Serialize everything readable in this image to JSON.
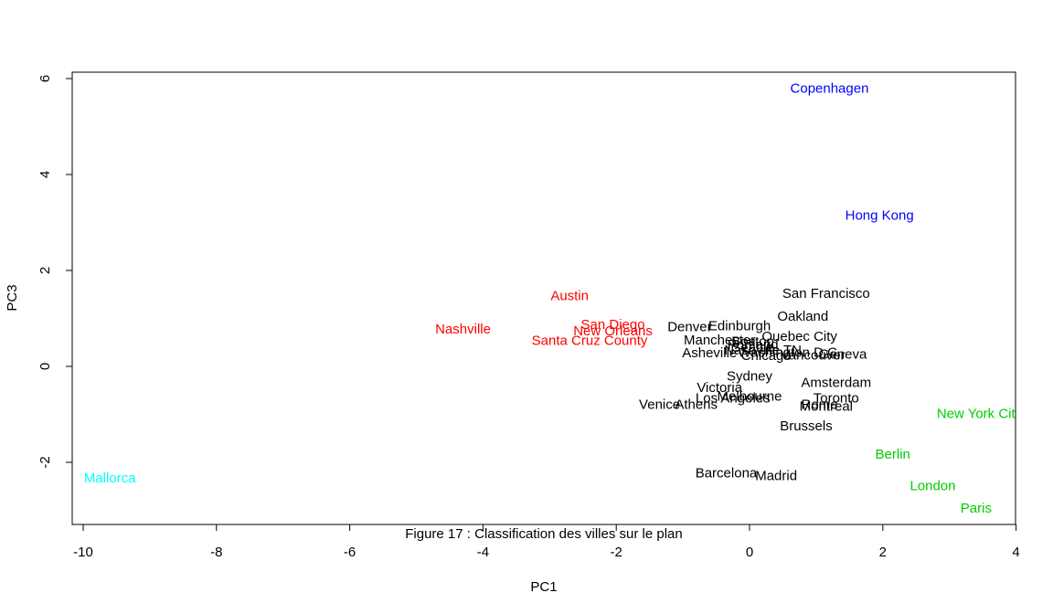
{
  "chart_data": {
    "type": "scatter",
    "xlabel": "PC1",
    "ylabel": "PC3",
    "caption": "Figure 17 : Classification des villes sur le plan",
    "xlim": [
      -10.2,
      4.0
    ],
    "ylim": [
      -3.25,
      6.1
    ],
    "xticks": [
      -10,
      -8,
      -6,
      -4,
      -2,
      0,
      2,
      4
    ],
    "yticks": [
      -2,
      0,
      2,
      4,
      6
    ],
    "colors": {
      "black": "#000000",
      "red": "#ff0000",
      "blue": "#0000ff",
      "green": "#00cd00",
      "cyan": "#00ffff"
    },
    "points": [
      {
        "label": "Copenhagen",
        "x": 1.2,
        "y": 5.8,
        "color": "blue"
      },
      {
        "label": "Hong Kong",
        "x": 1.95,
        "y": 3.15,
        "color": "blue"
      },
      {
        "label": "Austin",
        "x": -2.7,
        "y": 1.48,
        "color": "red"
      },
      {
        "label": "Nashville",
        "x": -4.3,
        "y": 0.78,
        "color": "red"
      },
      {
        "label": "San Diego",
        "x": -2.05,
        "y": 0.88,
        "color": "red"
      },
      {
        "label": "New Orleans",
        "x": -2.05,
        "y": 0.74,
        "color": "red"
      },
      {
        "label": "Santa Cruz County",
        "x": -2.4,
        "y": 0.54,
        "color": "red"
      },
      {
        "label": "Mallorca",
        "x": -9.6,
        "y": -2.32,
        "color": "cyan"
      },
      {
        "label": "New York City",
        "x": 3.45,
        "y": -0.98,
        "color": "green"
      },
      {
        "label": "Berlin",
        "x": 2.15,
        "y": -1.83,
        "color": "green"
      },
      {
        "label": "London",
        "x": 2.75,
        "y": -2.49,
        "color": "green"
      },
      {
        "label": "Paris",
        "x": 3.4,
        "y": -2.95,
        "color": "green"
      },
      {
        "label": "San Francisco",
        "x": 1.15,
        "y": 1.52,
        "color": "black"
      },
      {
        "label": "Oakland",
        "x": 0.8,
        "y": 1.05,
        "color": "black"
      },
      {
        "label": "Denver",
        "x": -0.9,
        "y": 0.83,
        "color": "black"
      },
      {
        "label": "Edinburgh",
        "x": -0.15,
        "y": 0.85,
        "color": "black"
      },
      {
        "label": "Quebec City",
        "x": 0.75,
        "y": 0.63,
        "color": "black"
      },
      {
        "label": "Manchester",
        "x": -0.45,
        "y": 0.55,
        "color": "black"
      },
      {
        "label": "Boston",
        "x": 0.05,
        "y": 0.52,
        "color": "black"
      },
      {
        "label": "Portland",
        "x": 0.05,
        "y": 0.46,
        "color": "black"
      },
      {
        "label": "Seattle",
        "x": 0.05,
        "y": 0.4,
        "color": "black"
      },
      {
        "label": "Nashville TN",
        "x": 0.2,
        "y": 0.34,
        "color": "black"
      },
      {
        "label": "Washington D.C.",
        "x": 0.6,
        "y": 0.3,
        "color": "black"
      },
      {
        "label": "Asheville",
        "x": -0.6,
        "y": 0.29,
        "color": "black"
      },
      {
        "label": "Chicago",
        "x": 0.25,
        "y": 0.23,
        "color": "black"
      },
      {
        "label": "Vancouver",
        "x": 0.95,
        "y": 0.24,
        "color": "black"
      },
      {
        "label": "Geneva",
        "x": 1.4,
        "y": 0.26,
        "color": "black"
      },
      {
        "label": "Sydney",
        "x": 0.0,
        "y": -0.2,
        "color": "black"
      },
      {
        "label": "Amsterdam",
        "x": 1.3,
        "y": -0.33,
        "color": "black"
      },
      {
        "label": "Victoria",
        "x": -0.45,
        "y": -0.44,
        "color": "black"
      },
      {
        "label": "Melbourne",
        "x": 0.0,
        "y": -0.62,
        "color": "black"
      },
      {
        "label": "Los Angeles",
        "x": -0.25,
        "y": -0.66,
        "color": "black"
      },
      {
        "label": "Toronto",
        "x": 1.3,
        "y": -0.66,
        "color": "black"
      },
      {
        "label": "Rome",
        "x": 1.05,
        "y": -0.79,
        "color": "black"
      },
      {
        "label": "Montreal",
        "x": 1.15,
        "y": -0.83,
        "color": "black"
      },
      {
        "label": "Venice",
        "x": -1.35,
        "y": -0.79,
        "color": "black"
      },
      {
        "label": "Athens",
        "x": -0.8,
        "y": -0.79,
        "color": "black"
      },
      {
        "label": "Brussels",
        "x": 0.85,
        "y": -1.24,
        "color": "black"
      },
      {
        "label": "Barcelona",
        "x": -0.35,
        "y": -2.22,
        "color": "black"
      },
      {
        "label": "Madrid",
        "x": 0.4,
        "y": -2.28,
        "color": "black"
      }
    ]
  }
}
